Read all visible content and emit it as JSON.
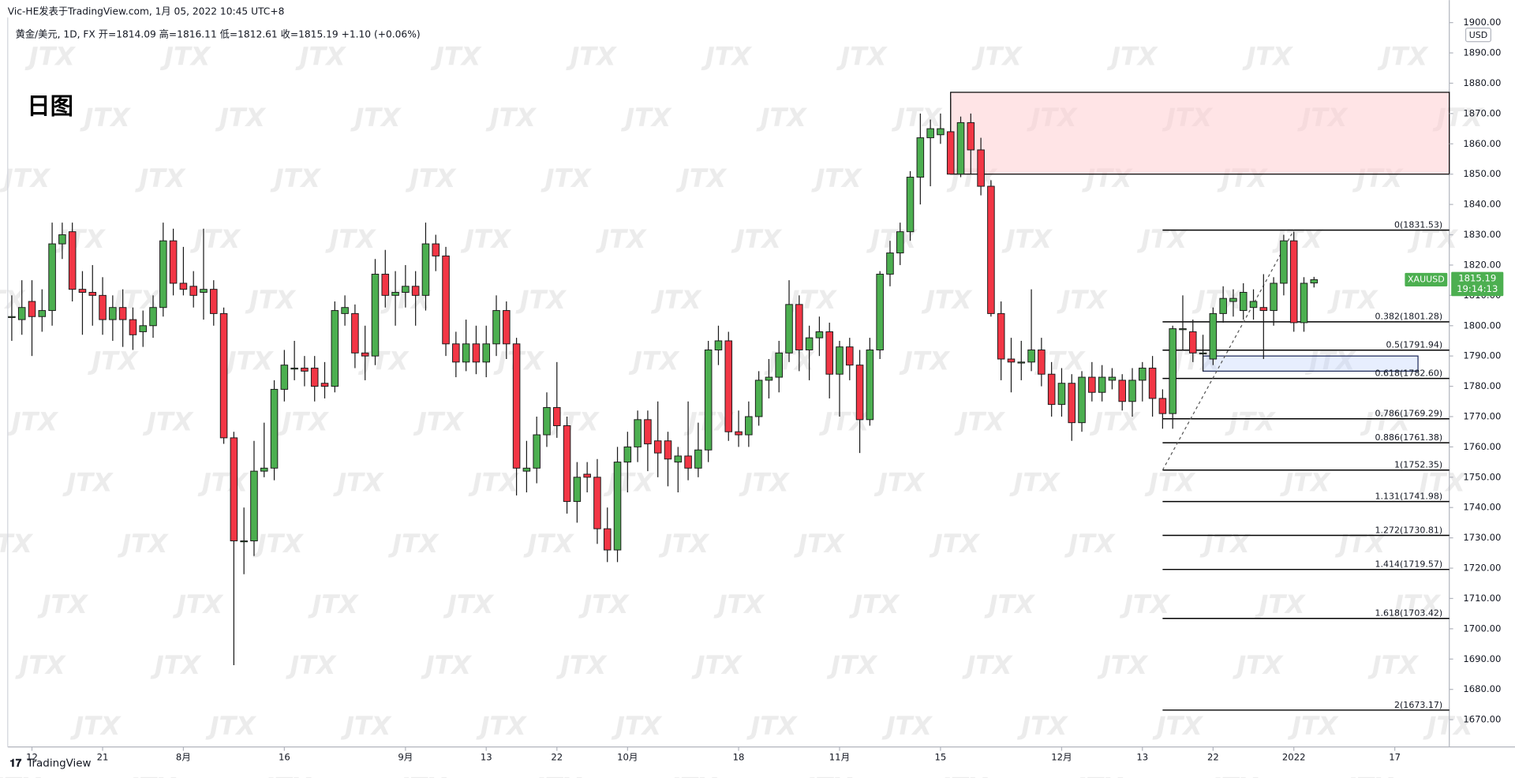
{
  "header": {
    "author": "Vic-HE发表于TradingView.com, 1月 05, 2022 10:45 UTC+8",
    "legend": "黄金/美元, 1D, FX  开=1814.09  高=1816.11  低=1812.61  收=1815.19  +1.10 (+0.06%)",
    "logo": "TradingView"
  },
  "chart_data": {
    "type": "candlestick",
    "title": "日图",
    "watermark": "JTX",
    "currency": "USD",
    "up_color": "#4caf50",
    "down_color": "#f23645",
    "open": [
      1803,
      1802,
      1808,
      1803,
      1805,
      1827,
      1831,
      1812,
      1811,
      1810,
      1802,
      1806,
      1802,
      1798,
      1800,
      1806,
      1828,
      1814,
      1813,
      1811,
      1812,
      1804,
      1763,
      1729,
      1729,
      1752,
      1753,
      1779,
      1786,
      1786,
      1786,
      1781,
      1780,
      1804,
      1804,
      1791,
      1790,
      1817,
      1810,
      1811,
      1813,
      1810,
      1827,
      1823,
      1794,
      1788,
      1794,
      1788,
      1794,
      1805,
      1794,
      1752,
      1753,
      1764,
      1773,
      1767,
      1742,
      1751,
      1750,
      1733,
      1726,
      1755,
      1760,
      1769,
      1762,
      1762,
      1755,
      1757,
      1753,
      1759,
      1792,
      1795,
      1765,
      1764,
      1770,
      1782,
      1783,
      1791,
      1807,
      1792,
      1796,
      1798,
      1784,
      1793,
      1787,
      1769,
      1792,
      1817,
      1824,
      1831,
      1849,
      1862,
      1863,
      1864,
      1850,
      1867,
      1858,
      1846,
      1804,
      1789,
      1788,
      1788,
      1792,
      1784,
      1774,
      1781,
      1768,
      1783,
      1778,
      1782,
      1782,
      1775,
      1782,
      1786,
      1776,
      1771,
      1799,
      1798,
      1791,
      1789,
      1804,
      1808,
      1805,
      1806,
      1806,
      1805,
      1814,
      1828,
      1801,
      1814.09
    ],
    "high": [
      1810,
      1815,
      1815,
      1812,
      1834,
      1834,
      1834,
      1818,
      1820,
      1816,
      1810,
      1812,
      1806,
      1805,
      1810,
      1834,
      1832,
      1826,
      1818,
      1832,
      1815,
      1806,
      1765,
      1740,
      1762,
      1768,
      1782,
      1792,
      1795,
      1790,
      1790,
      1788,
      1808,
      1810,
      1807,
      1800,
      1822,
      1825,
      1818,
      1820,
      1818,
      1834,
      1830,
      1826,
      1798,
      1802,
      1800,
      1800,
      1810,
      1808,
      1796,
      1762,
      1770,
      1778,
      1788,
      1770,
      1755,
      1755,
      1756,
      1740,
      1760,
      1765,
      1772,
      1772,
      1775,
      1765,
      1760,
      1775,
      1768,
      1795,
      1800,
      1798,
      1772,
      1775,
      1785,
      1789,
      1795,
      1815,
      1810,
      1800,
      1803,
      1801,
      1795,
      1796,
      1792,
      1796,
      1818,
      1828,
      1834,
      1851,
      1870,
      1868,
      1870,
      1875,
      1869,
      1870,
      1862,
      1848,
      1808,
      1796,
      1795,
      1812,
      1796,
      1788,
      1786,
      1784,
      1785,
      1788,
      1787,
      1786,
      1784,
      1786,
      1788,
      1790,
      1779,
      1800,
      1810,
      1802,
      1797,
      1806,
      1813,
      1812,
      1814,
      1812,
      1817,
      1816,
      1830,
      1831,
      1816,
      1816.11
    ],
    "low": [
      1795,
      1797,
      1790,
      1798,
      1800,
      1822,
      1808,
      1797,
      1800,
      1797,
      1795,
      1793,
      1792,
      1793,
      1796,
      1803,
      1810,
      1810,
      1806,
      1802,
      1800,
      1761,
      1688,
      1718,
      1724,
      1750,
      1749,
      1775,
      1782,
      1780,
      1775,
      1776,
      1778,
      1800,
      1786,
      1782,
      1787,
      1806,
      1800,
      1806,
      1800,
      1805,
      1818,
      1790,
      1783,
      1785,
      1784,
      1783,
      1790,
      1789,
      1744,
      1745,
      1748,
      1760,
      1763,
      1738,
      1735,
      1745,
      1728,
      1722,
      1722,
      1745,
      1755,
      1752,
      1750,
      1747,
      1745,
      1749,
      1750,
      1755,
      1787,
      1762,
      1760,
      1760,
      1767,
      1776,
      1778,
      1788,
      1785,
      1782,
      1790,
      1776,
      1770,
      1782,
      1758,
      1767,
      1789,
      1813,
      1820,
      1828,
      1840,
      1846,
      1860,
      1850,
      1849,
      1850,
      1843,
      1803,
      1782,
      1778,
      1782,
      1785,
      1780,
      1770,
      1770,
      1762,
      1765,
      1775,
      1775,
      1779,
      1772,
      1770,
      1775,
      1770,
      1766,
      1766,
      1792,
      1788,
      1785,
      1787,
      1801,
      1803,
      1802,
      1802,
      1789,
      1800,
      1810,
      1798,
      1798,
      1812.61
    ],
    "close": [
      1803,
      1806,
      1803,
      1805,
      1827,
      1830,
      1812,
      1811,
      1810,
      1802,
      1806,
      1802,
      1797,
      1800,
      1806,
      1828,
      1814,
      1812,
      1810,
      1812,
      1804,
      1763,
      1729,
      1729,
      1752,
      1753,
      1779,
      1787,
      1786,
      1785,
      1780,
      1780,
      1805,
      1806,
      1791,
      1790,
      1817,
      1810,
      1811,
      1813,
      1810,
      1827,
      1823,
      1794,
      1788,
      1794,
      1788,
      1794,
      1805,
      1794,
      1753,
      1753,
      1764,
      1773,
      1767,
      1742,
      1750,
      1750,
      1733,
      1726,
      1755,
      1760,
      1769,
      1761,
      1758,
      1756,
      1757,
      1753,
      1759,
      1792,
      1795,
      1765,
      1764,
      1770,
      1782,
      1783,
      1791,
      1807,
      1792,
      1796,
      1798,
      1784,
      1793,
      1787,
      1769,
      1792,
      1817,
      1824,
      1831,
      1849,
      1862,
      1865,
      1865,
      1850,
      1867,
      1858,
      1846,
      1804,
      1789,
      1788,
      1788,
      1792,
      1784,
      1774,
      1781,
      1768,
      1783,
      1778,
      1783,
      1783,
      1775,
      1782,
      1786,
      1776,
      1771,
      1799,
      1799,
      1791,
      1791,
      1804,
      1809,
      1809,
      1811,
      1808,
      1805,
      1814,
      1828,
      1801,
      1814,
      1815.19
    ],
    "xlim": [
      -0.4,
      142.4
    ],
    "xticks": [
      {
        "value": 2,
        "label": "12"
      },
      {
        "value": 9,
        "label": "21"
      },
      {
        "value": 17,
        "label": "8月"
      },
      {
        "value": 27,
        "label": "16"
      },
      {
        "value": 39,
        "label": "9月"
      },
      {
        "value": 47,
        "label": "13"
      },
      {
        "value": 54,
        "label": "22"
      },
      {
        "value": 61,
        "label": "10月"
      },
      {
        "value": 72,
        "label": "18"
      },
      {
        "value": 82,
        "label": "11月"
      },
      {
        "value": 92,
        "label": "15"
      },
      {
        "value": 104,
        "label": "12月"
      },
      {
        "value": 112,
        "label": "13"
      },
      {
        "value": 119,
        "label": "22"
      },
      {
        "value": 127,
        "label": "2022"
      },
      {
        "value": 137,
        "label": "17"
      }
    ],
    "ylim": [
      1661,
      1902
    ],
    "yticks": [
      {
        "value": 1670,
        "label": "1670.00"
      },
      {
        "value": 1680,
        "label": "1680.00"
      },
      {
        "value": 1690,
        "label": "1690.00"
      },
      {
        "value": 1700,
        "label": "1700.00"
      },
      {
        "value": 1710,
        "label": "1710.00"
      },
      {
        "value": 1720,
        "label": "1720.00"
      },
      {
        "value": 1730,
        "label": "1730.00"
      },
      {
        "value": 1740,
        "label": "1740.00"
      },
      {
        "value": 1750,
        "label": "1750.00"
      },
      {
        "value": 1760,
        "label": "1760.00"
      },
      {
        "value": 1770,
        "label": "1770.00"
      },
      {
        "value": 1780,
        "label": "1780.00"
      },
      {
        "value": 1790,
        "label": "1790.00"
      },
      {
        "value": 1800,
        "label": "1800.00"
      },
      {
        "value": 1810,
        "label": "1810.00"
      },
      {
        "value": 1820,
        "label": "1820.00"
      },
      {
        "value": 1830,
        "label": "1830.00"
      },
      {
        "value": 1840,
        "label": "1840.00"
      },
      {
        "value": 1850,
        "label": "1850.00"
      },
      {
        "value": 1860,
        "label": "1860.00"
      },
      {
        "value": 1870,
        "label": "1870.00"
      },
      {
        "value": 1880,
        "label": "1880.00"
      },
      {
        "value": 1890,
        "label": "1890.00"
      },
      {
        "value": 1900,
        "label": "1900.00"
      }
    ],
    "fib_levels": [
      {
        "value": 1831.53,
        "label": "0(1831.53)"
      },
      {
        "value": 1801.28,
        "label": "0.382(1801.28)"
      },
      {
        "value": 1791.94,
        "label": "0.5(1791.94)"
      },
      {
        "value": 1782.6,
        "label": "0.618(1782.60)"
      },
      {
        "value": 1769.29,
        "label": "0.786(1769.29)"
      },
      {
        "value": 1761.38,
        "label": "0.886(1761.38)"
      },
      {
        "value": 1752.35,
        "label": "1(1752.35)"
      },
      {
        "value": 1741.98,
        "label": "1.131(1741.98)"
      },
      {
        "value": 1730.81,
        "label": "1.272(1730.81)"
      },
      {
        "value": 1719.57,
        "label": "1.414(1719.57)"
      },
      {
        "value": 1703.42,
        "label": "1.618(1703.42)"
      },
      {
        "value": 1673.17,
        "label": "2(1673.17)"
      }
    ],
    "supply_zone": [
      1850,
      1877
    ],
    "demand_zone": [
      1785,
      1790
    ],
    "last_price": {
      "symbol": "XAUUSD",
      "value": 1815.19,
      "countdown": "19:14:13"
    }
  }
}
